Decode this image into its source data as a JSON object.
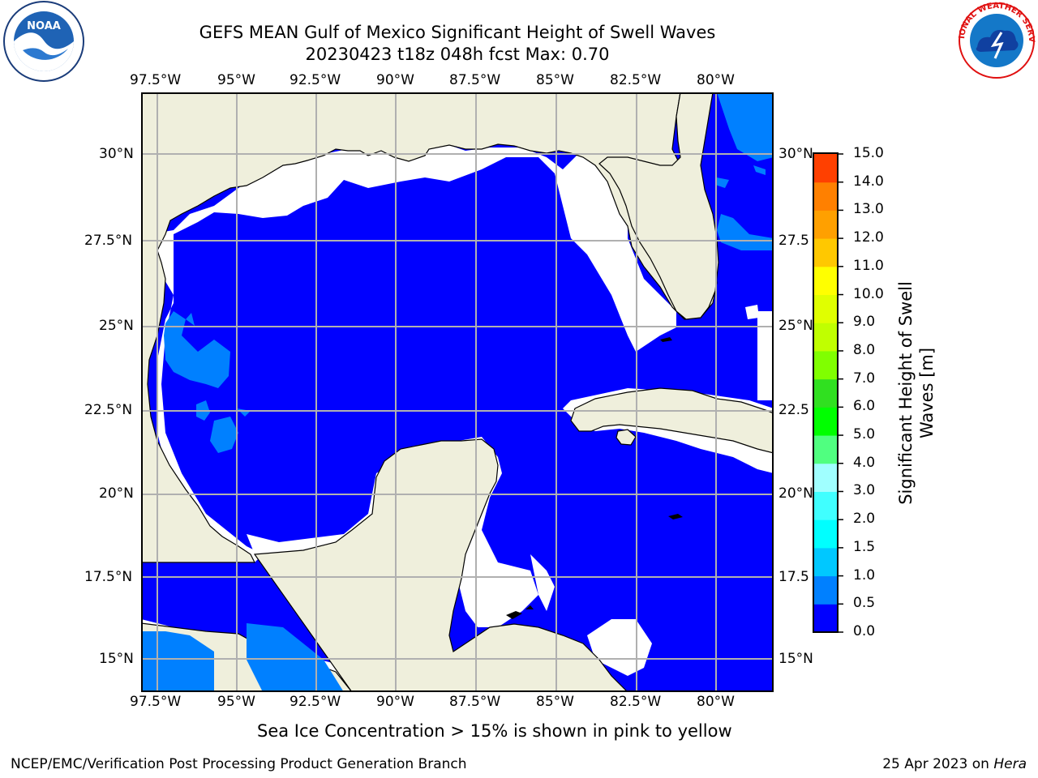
{
  "title": {
    "line1": "GEFS MEAN Gulf of Mexico Significant Height of Swell Waves",
    "line2": "20230423 t18z 048h fcst   Max: 0.70"
  },
  "map": {
    "lon_labels": [
      "97.5°W",
      "95°W",
      "92.5°W",
      "90°W",
      "87.5°W",
      "85°W",
      "82.5°W",
      "80°W"
    ],
    "lat_labels": [
      "30°N",
      "27.5°N",
      "25°N",
      "22.5°N",
      "20°N",
      "17.5°N",
      "15°N"
    ],
    "lat_labels_right": [
      "30°N",
      "27.5",
      "25°N",
      "22.5",
      "20°N",
      "17.5",
      "15°N"
    ],
    "colors": {
      "ocean": "#0000ff",
      "land": "#efefdc",
      "swell_light": "#0080ff",
      "gridline": "#b0b0b0",
      "coast": "#000000"
    }
  },
  "colorbar": {
    "label_line1": "Significant Height of Swell",
    "label_line2": "Waves [m]",
    "ticks": [
      "0.0",
      "0.5",
      "1.0",
      "1.5",
      "2.0",
      "3.0",
      "4.0",
      "5.0",
      "6.0",
      "7.0",
      "8.0",
      "9.0",
      "10.0",
      "11.0",
      "12.0",
      "13.0",
      "14.0",
      "15.0"
    ],
    "colors": [
      "#0000ff",
      "#0080ff",
      "#00c8ff",
      "#00ffff",
      "#40ffff",
      "#a0ffff",
      "#50ff80",
      "#00ff00",
      "#30e020",
      "#80ff00",
      "#c0ff00",
      "#e0ff00",
      "#ffff00",
      "#ffc800",
      "#ffa000",
      "#ff8000",
      "#ff4000",
      "#ff0000"
    ]
  },
  "note": "Sea Ice Concentration > 15% is shown in pink to yellow",
  "footer": {
    "left": "NCEP/EMC/Verification Post Processing Product Generation Branch",
    "right_prefix": "25 Apr 2023 on ",
    "right_machine": "Hera"
  },
  "logos": {
    "noaa_text": "NOAA",
    "nws_text": "NATIONAL WEATHER SERVICE"
  }
}
